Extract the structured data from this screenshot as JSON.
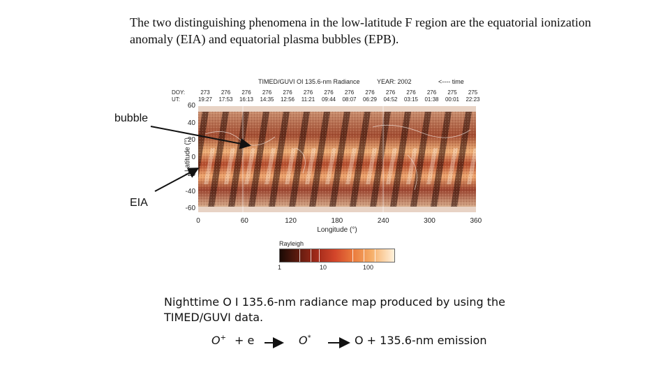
{
  "intro_text": "The two distinguishing phenomena in the low-latitude F region are the equatorial ionization anomaly (EIA) and equatorial plasma bubbles (EPB).",
  "figure": {
    "title": "TIMED/GUVI  OI 135.6-nm Radiance",
    "year": "YEAR: 2002",
    "time_arrow": "<---- time",
    "doy_label": "DOY:",
    "ut_label": "UT:",
    "passes": [
      {
        "doy": "273",
        "ut": "19:27"
      },
      {
        "doy": "276",
        "ut": "17:53"
      },
      {
        "doy": "276",
        "ut": "16:13"
      },
      {
        "doy": "276",
        "ut": "14:35"
      },
      {
        "doy": "276",
        "ut": "12:56"
      },
      {
        "doy": "276",
        "ut": "11:21"
      },
      {
        "doy": "276",
        "ut": "09:44"
      },
      {
        "doy": "276",
        "ut": "08:07"
      },
      {
        "doy": "276",
        "ut": "06:29"
      },
      {
        "doy": "276",
        "ut": "04:52"
      },
      {
        "doy": "276",
        "ut": "03:15"
      },
      {
        "doy": "276",
        "ut": "01:38"
      },
      {
        "doy": "275",
        "ut": "00:01"
      },
      {
        "doy": "275",
        "ut": "22:23"
      }
    ],
    "y_ticks": [
      "60",
      "40",
      "20",
      "0",
      "-20",
      "-40",
      "-60"
    ],
    "x_ticks": [
      "0",
      "60",
      "120",
      "180",
      "240",
      "300",
      "360"
    ],
    "ylabel": "Latitude (°)",
    "xlabel": "Longitude (°)",
    "colorbar": {
      "title": "Rayleigh",
      "ticks": [
        "1",
        "10",
        "100"
      ]
    }
  },
  "annotations": {
    "bubble": "bubble",
    "eia": "EIA"
  },
  "caption": "Nighttime O I 135.6-nm radiance map produced by using the TIMED/GUVI data.",
  "reaction": {
    "oplus": "O",
    "plus_sup": "+",
    "plus_e": "+  e",
    "ostar": "O",
    "star_sup": "*",
    "product": "O  + 135.6-nm emission"
  }
}
